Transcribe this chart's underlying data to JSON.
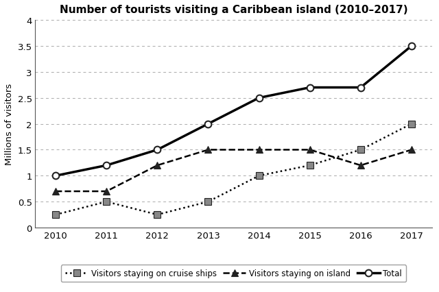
{
  "title": "Number of tourists visiting a Caribbean island (2010–2017)",
  "ylabel": "Millions of visitors",
  "years": [
    2010,
    2011,
    2012,
    2013,
    2014,
    2015,
    2016,
    2017
  ],
  "cruise_ships": [
    0.25,
    0.5,
    0.25,
    0.5,
    1.0,
    1.2,
    1.5,
    2.0
  ],
  "island": [
    0.7,
    0.7,
    1.2,
    1.5,
    1.5,
    1.5,
    1.2,
    1.5
  ],
  "total": [
    1.0,
    1.2,
    1.5,
    2.0,
    2.5,
    2.7,
    2.7,
    3.5
  ],
  "ylim": [
    0,
    4
  ],
  "yticks": [
    0,
    0.5,
    1.0,
    1.5,
    2.0,
    2.5,
    3.0,
    3.5,
    4.0
  ],
  "ytick_labels": [
    "0",
    "0.5",
    "1",
    "1.5",
    "2",
    "2.5",
    "3",
    "3.5",
    "4"
  ],
  "legend_labels": [
    "Visitors staying on cruise ships",
    "Visitors staying on island",
    "Total"
  ],
  "bg_color": "#ffffff",
  "line_color": "#000000",
  "marker_gray": "#888888",
  "marker_dark": "#222222"
}
